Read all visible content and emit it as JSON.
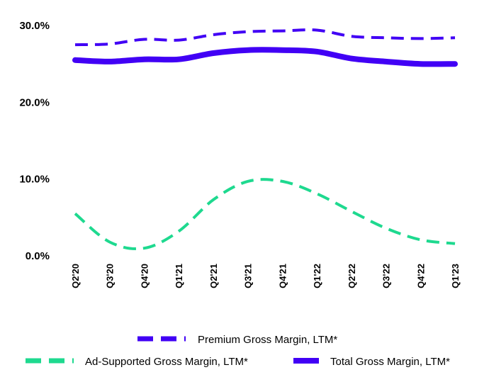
{
  "chart_data": {
    "type": "line",
    "categories": [
      "Q2'20",
      "Q3'20",
      "Q4'20",
      "Q1'21",
      "Q2'21",
      "Q3'21",
      "Q4'21",
      "Q1'22",
      "Q2'22",
      "Q3'22",
      "Q4'22",
      "Q1'23"
    ],
    "ylim": [
      0,
      30
    ],
    "yticks": [
      0,
      10,
      20,
      30
    ],
    "ytick_labels": [
      "0.0%",
      "10.0%",
      "20.0%",
      "30.0%"
    ],
    "grid": false,
    "legend_position": "bottom",
    "series": [
      {
        "name": "Premium Gross Margin, LTM*",
        "color": "#4100F5",
        "style": "dashed",
        "values": [
          27.5,
          27.6,
          28.2,
          28.1,
          28.8,
          29.2,
          29.3,
          29.4,
          28.6,
          28.4,
          28.3,
          28.4
        ]
      },
      {
        "name": "Total Gross Margin, LTM*",
        "color": "#4100F5",
        "style": "solid",
        "values": [
          25.5,
          25.3,
          25.6,
          25.6,
          26.4,
          26.8,
          26.8,
          26.6,
          25.7,
          25.3,
          25.0,
          25.0
        ]
      },
      {
        "name": "Ad-Supported Gross Margin, LTM*",
        "color": "#1ED98F",
        "style": "dashed",
        "values": [
          5.5,
          1.8,
          1.0,
          3.2,
          7.3,
          9.7,
          9.7,
          8.1,
          5.8,
          3.6,
          2.1,
          1.6
        ]
      }
    ]
  }
}
